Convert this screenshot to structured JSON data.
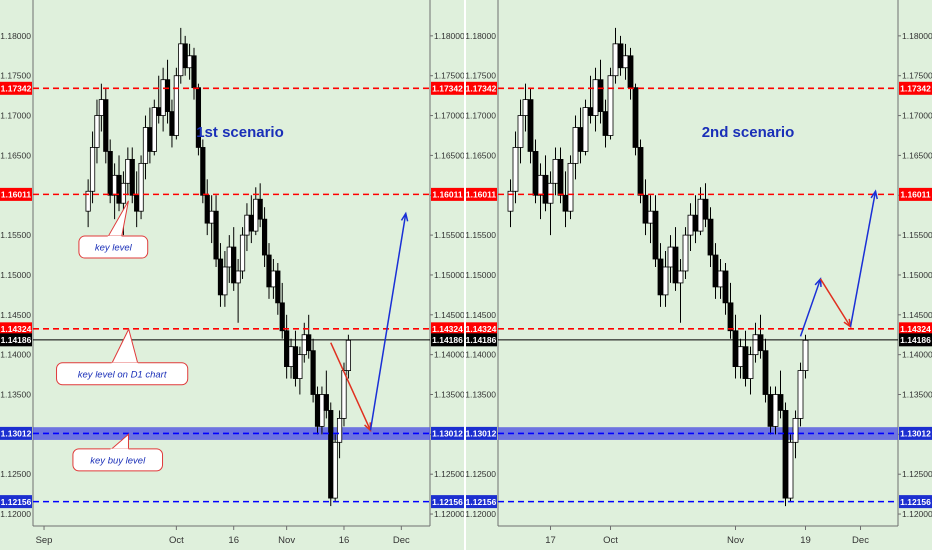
{
  "chart_data": [
    {
      "type": "candlestick",
      "scenario_label": "1st scenario",
      "y_axis": {
        "ticks": [
          "1.18000",
          "1.17500",
          "1.17000",
          "1.16500",
          "1.16000",
          "1.15500",
          "1.15000",
          "1.14500",
          "1.14000",
          "1.13500",
          "1.13000",
          "1.12500",
          "1.12000"
        ],
        "ylim": [
          1.1185,
          1.1845
        ]
      },
      "x_axis": {
        "ticks": [
          {
            "label": "Sep",
            "bar": 2
          },
          {
            "label": "Oct",
            "bar": 32
          },
          {
            "label": "16",
            "bar": 45
          },
          {
            "label": "Nov",
            "bar": 57
          },
          {
            "label": "16",
            "bar": 70
          },
          {
            "label": "Dec",
            "bar": 83
          }
        ],
        "bar_count": 90
      },
      "levels": [
        {
          "value": 1.17342,
          "label": "1.17342",
          "color": "#ff0000",
          "style": "dashed"
        },
        {
          "value": 1.16011,
          "label": "1.16011",
          "color": "#ff0000",
          "style": "dashed"
        },
        {
          "value": 1.14324,
          "label": "1.14324",
          "color": "#ff0000",
          "style": "dashed"
        },
        {
          "value": 1.14186,
          "label": "1.14186",
          "color": "#000000",
          "style": "solid"
        },
        {
          "value": 1.13012,
          "label": "1.13012",
          "color": "#0000ff",
          "style": "dashed",
          "band": [
            1.1293,
            1.1309
          ]
        },
        {
          "value": 1.12156,
          "label": "1.12156",
          "color": "#0000ff",
          "style": "dashed"
        }
      ],
      "annotations": [
        {
          "text": "key level",
          "value": 1.1535,
          "bar": 10
        },
        {
          "text": "key level on D1 chart",
          "value": 1.1376,
          "bar": 12
        },
        {
          "text": "key buy level",
          "value": 1.1268,
          "bar": 11
        }
      ],
      "arrows": [
        {
          "color": "#e03020",
          "points": [
            [
              67,
              1.1415
            ],
            [
              76,
              1.1305
            ]
          ]
        },
        {
          "color": "#1a2fd6",
          "points": [
            [
              76,
              1.1305
            ],
            [
              84,
              1.1577
            ]
          ]
        }
      ]
    },
    {
      "type": "candlestick",
      "scenario_label": "2nd scenario",
      "y_axis": {
        "ticks": [
          "1.18000",
          "1.17500",
          "1.17000",
          "1.16500",
          "1.16000",
          "1.15500",
          "1.15000",
          "1.14500",
          "1.14000",
          "1.13500",
          "1.13000",
          "1.12500",
          "1.12000"
        ],
        "ylim": [
          1.1185,
          1.1845
        ]
      },
      "x_axis": {
        "ticks": [
          {
            "label": "17",
            "bar": 10
          },
          {
            "label": "Oct",
            "bar": 22
          },
          {
            "label": "Nov",
            "bar": 47
          },
          {
            "label": "19",
            "bar": 61
          },
          {
            "label": "Dec",
            "bar": 72
          }
        ],
        "bar_count": 80
      },
      "levels": [
        {
          "value": 1.17342,
          "label": "1.17342",
          "color": "#ff0000",
          "style": "dashed"
        },
        {
          "value": 1.16011,
          "label": "1.16011",
          "color": "#ff0000",
          "style": "dashed"
        },
        {
          "value": 1.14324,
          "label": "1.14324",
          "color": "#ff0000",
          "style": "dashed"
        },
        {
          "value": 1.14186,
          "label": "1.14186",
          "color": "#000000",
          "style": "solid"
        },
        {
          "value": 1.13012,
          "label": "1.13012",
          "color": "#0000ff",
          "style": "dashed",
          "band": [
            1.1293,
            1.1309
          ]
        },
        {
          "value": 1.12156,
          "label": "1.12156",
          "color": "#0000ff",
          "style": "dashed"
        }
      ],
      "annotations": [],
      "arrows": [
        {
          "color": "#1a2fd6",
          "points": [
            [
              60,
              1.1423
            ],
            [
              64,
              1.1495
            ]
          ]
        },
        {
          "color": "#e03020",
          "points": [
            [
              64,
              1.1495
            ],
            [
              70,
              1.1435
            ]
          ]
        },
        {
          "color": "#1a2fd6",
          "points": [
            [
              70,
              1.1435
            ],
            [
              75,
              1.1605
            ]
          ]
        }
      ]
    }
  ],
  "ohlc_path": [
    [
      1.158,
      1.162,
      1.156,
      1.1605
    ],
    [
      1.1605,
      1.168,
      1.159,
      1.166
    ],
    [
      1.166,
      1.172,
      1.164,
      1.17
    ],
    [
      1.17,
      1.174,
      1.168,
      1.172
    ],
    [
      1.172,
      1.1735,
      1.164,
      1.1655
    ],
    [
      1.1655,
      1.167,
      1.159,
      1.16
    ],
    [
      1.16,
      1.164,
      1.157,
      1.1625
    ],
    [
      1.1625,
      1.165,
      1.158,
      1.159
    ],
    [
      1.159,
      1.163,
      1.155,
      1.1615
    ],
    [
      1.1615,
      1.166,
      1.16,
      1.1645
    ],
    [
      1.1645,
      1.166,
      1.159,
      1.16
    ],
    [
      1.16,
      1.163,
      1.156,
      1.158
    ],
    [
      1.158,
      1.165,
      1.157,
      1.164
    ],
    [
      1.164,
      1.17,
      1.162,
      1.1685
    ],
    [
      1.1685,
      1.171,
      1.164,
      1.1655
    ],
    [
      1.1655,
      1.172,
      1.165,
      1.171
    ],
    [
      1.171,
      1.175,
      1.169,
      1.17
    ],
    [
      1.17,
      1.176,
      1.168,
      1.1745
    ],
    [
      1.1745,
      1.177,
      1.169,
      1.1705
    ],
    [
      1.1705,
      1.172,
      1.166,
      1.1675
    ],
    [
      1.1675,
      1.176,
      1.167,
      1.175
    ],
    [
      1.175,
      1.181,
      1.174,
      1.179
    ],
    [
      1.179,
      1.18,
      1.175,
      1.176
    ],
    [
      1.176,
      1.179,
      1.1745,
      1.1775
    ],
    [
      1.1775,
      1.1785,
      1.172,
      1.1735
    ],
    [
      1.1735,
      1.174,
      1.165,
      1.166
    ],
    [
      1.166,
      1.167,
      1.159,
      1.16
    ],
    [
      1.16,
      1.162,
      1.155,
      1.1565
    ],
    [
      1.1565,
      1.16,
      1.154,
      1.158
    ],
    [
      1.158,
      1.16,
      1.151,
      1.152
    ],
    [
      1.152,
      1.154,
      1.146,
      1.1475
    ],
    [
      1.1475,
      1.153,
      1.146,
      1.151
    ],
    [
      1.151,
      1.155,
      1.149,
      1.1535
    ],
    [
      1.1535,
      1.156,
      1.148,
      1.149
    ],
    [
      1.149,
      1.152,
      1.144,
      1.1505
    ],
    [
      1.1505,
      1.156,
      1.1495,
      1.155
    ],
    [
      1.155,
      1.159,
      1.153,
      1.1575
    ],
    [
      1.1575,
      1.16,
      1.154,
      1.1555
    ],
    [
      1.1555,
      1.161,
      1.155,
      1.1595
    ],
    [
      1.1595,
      1.1615,
      1.156,
      1.157
    ],
    [
      1.157,
      1.1585,
      1.151,
      1.1525
    ],
    [
      1.1525,
      1.154,
      1.147,
      1.1485
    ],
    [
      1.1485,
      1.152,
      1.147,
      1.1505
    ],
    [
      1.1505,
      1.1515,
      1.145,
      1.1465
    ],
    [
      1.1465,
      1.149,
      1.142,
      1.143
    ],
    [
      1.143,
      1.145,
      1.137,
      1.1385
    ],
    [
      1.1385,
      1.142,
      1.137,
      1.141
    ],
    [
      1.141,
      1.143,
      1.136,
      1.137
    ],
    [
      1.137,
      1.141,
      1.135,
      1.14
    ],
    [
      1.14,
      1.144,
      1.139,
      1.1425
    ],
    [
      1.1425,
      1.145,
      1.1395,
      1.1405
    ],
    [
      1.1405,
      1.142,
      1.134,
      1.135
    ],
    [
      1.135,
      1.136,
      1.13,
      1.131
    ],
    [
      1.131,
      1.136,
      1.13,
      1.135
    ],
    [
      1.135,
      1.138,
      1.132,
      1.133
    ],
    [
      1.133,
      1.134,
      1.121,
      1.122
    ],
    [
      1.122,
      1.13,
      1.1215,
      1.129
    ],
    [
      1.129,
      1.133,
      1.127,
      1.132
    ],
    [
      1.132,
      1.139,
      1.131,
      1.138
    ],
    [
      1.138,
      1.1425,
      1.137,
      1.1418
    ]
  ],
  "chart_offsets": [
    12,
    2
  ]
}
